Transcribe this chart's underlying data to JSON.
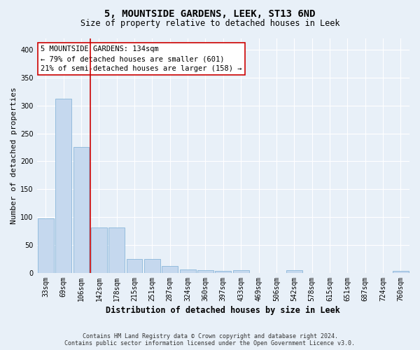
{
  "title": "5, MOUNTSIDE GARDENS, LEEK, ST13 6ND",
  "subtitle": "Size of property relative to detached houses in Leek",
  "xlabel": "Distribution of detached houses by size in Leek",
  "ylabel": "Number of detached properties",
  "bin_labels": [
    "33sqm",
    "69sqm",
    "106sqm",
    "142sqm",
    "178sqm",
    "215sqm",
    "251sqm",
    "287sqm",
    "324sqm",
    "360sqm",
    "397sqm",
    "433sqm",
    "469sqm",
    "506sqm",
    "542sqm",
    "578sqm",
    "615sqm",
    "651sqm",
    "687sqm",
    "724sqm",
    "760sqm"
  ],
  "bar_values": [
    98,
    312,
    225,
    81,
    81,
    25,
    25,
    12,
    6,
    5,
    4,
    5,
    0,
    0,
    5,
    0,
    0,
    0,
    0,
    0,
    3
  ],
  "bar_color": "#c5d8ee",
  "bar_edge_color": "#7aadd4",
  "vline_x_idx": 3,
  "vline_color": "#cc0000",
  "annotation_text": "5 MOUNTSIDE GARDENS: 134sqm\n← 79% of detached houses are smaller (601)\n21% of semi-detached houses are larger (158) →",
  "annotation_box_color": "#ffffff",
  "annotation_box_edge": "#cc0000",
  "ylim": [
    0,
    420
  ],
  "yticks": [
    0,
    50,
    100,
    150,
    200,
    250,
    300,
    350,
    400
  ],
  "footer": "Contains HM Land Registry data © Crown copyright and database right 2024.\nContains public sector information licensed under the Open Government Licence v3.0.",
  "bg_color": "#e8f0f8",
  "plot_bg_color": "#e8f0f8",
  "grid_color": "#ffffff",
  "title_fontsize": 10,
  "subtitle_fontsize": 8.5,
  "ylabel_fontsize": 8,
  "xlabel_fontsize": 8.5,
  "tick_fontsize": 7,
  "annotation_fontsize": 7.5,
  "footer_fontsize": 6
}
